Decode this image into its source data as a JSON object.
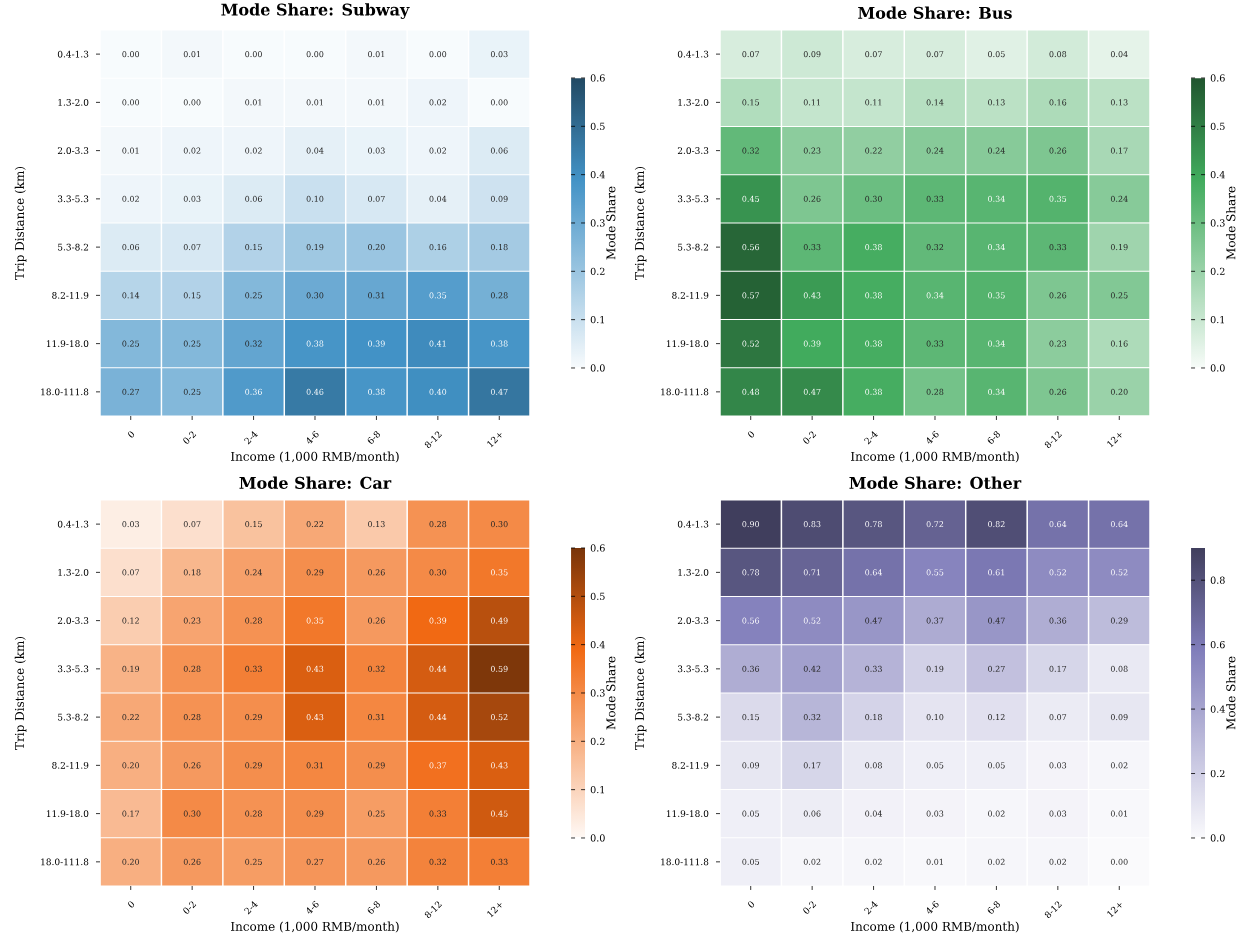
{
  "chart_data": [
    {
      "type": "heatmap",
      "title": "Mode Share: Subway",
      "xlabel": "Income (1,000 RMB/month)",
      "ylabel": "Trip Distance (km)",
      "clabel": "Mode Share",
      "color": "#4292c6",
      "categories": [
        "0",
        "0-2",
        "2-4",
        "4-6",
        "6-8",
        "8-12",
        "12+"
      ],
      "y_categories": [
        "0.4-1.3",
        "1.3-2.0",
        "2.0-3.3",
        "3.3-5.3",
        "5.3-8.2",
        "8.2-11.9",
        "11.9-18.0",
        "18.0-111.8"
      ],
      "cells": [
        [
          0.0,
          0.01,
          0.0,
          0.0,
          0.01,
          0.0,
          0.03
        ],
        [
          0.0,
          0.0,
          0.01,
          0.01,
          0.01,
          0.02,
          0.0
        ],
        [
          0.01,
          0.02,
          0.02,
          0.04,
          0.03,
          0.02,
          0.06
        ],
        [
          0.02,
          0.03,
          0.06,
          0.1,
          0.07,
          0.04,
          0.09
        ],
        [
          0.06,
          0.07,
          0.15,
          0.19,
          0.2,
          0.16,
          0.18
        ],
        [
          0.14,
          0.15,
          0.25,
          0.3,
          0.31,
          0.35,
          0.28
        ],
        [
          0.25,
          0.25,
          0.32,
          0.38,
          0.39,
          0.41,
          0.38
        ],
        [
          0.27,
          0.25,
          0.36,
          0.46,
          0.38,
          0.4,
          0.47
        ]
      ],
      "cell_labels": [
        [
          "0.00",
          "0.01",
          "0.00",
          "0.00",
          "0.01",
          "0.00",
          "0.03"
        ],
        [
          "0.00",
          "0.00",
          "0.01",
          "0.01",
          "0.01",
          "0.02",
          "0.00"
        ],
        [
          "0.01",
          "0.02",
          "0.02",
          "0.04",
          "0.03",
          "0.02",
          "0.06"
        ],
        [
          "0.02",
          "0.03",
          "0.06",
          "0.10",
          "0.07",
          "0.04",
          "0.09"
        ],
        [
          "0.06",
          "0.07",
          "0.15",
          "0.19",
          "0.20",
          "0.16",
          "0.18"
        ],
        [
          "0.14",
          "0.15",
          "0.25",
          "0.30",
          "0.31",
          "0.35",
          "0.28"
        ],
        [
          "0.25",
          "0.25",
          "0.32",
          "0.38",
          "0.39",
          "0.41",
          "0.38"
        ],
        [
          "0.27",
          "0.25",
          "0.36",
          "0.46",
          "0.38",
          "0.40",
          "0.47"
        ]
      ],
      "clim": [
        0,
        0.6
      ],
      "cticks": [
        {
          "value": 0,
          "label": "0.0"
        },
        {
          "value": 0.1,
          "label": "0.1"
        },
        {
          "value": 0.2,
          "label": "0.2"
        },
        {
          "value": 0.3,
          "label": "0.3"
        },
        {
          "value": 0.4,
          "label": "0.4"
        },
        {
          "value": 0.5,
          "label": "0.5"
        },
        {
          "value": 0.6,
          "label": "0.6"
        }
      ]
    },
    {
      "type": "heatmap",
      "title": "Mode Share: Bus",
      "xlabel": "Income (1,000 RMB/month)",
      "ylabel": "Trip Distance (km)",
      "clabel": "Mode Share",
      "color": "#41ab5d",
      "categories": [
        "0",
        "0-2",
        "2-4",
        "4-6",
        "6-8",
        "8-12",
        "12+"
      ],
      "y_categories": [
        "0.4-1.3",
        "1.3-2.0",
        "2.0-3.3",
        "3.3-5.3",
        "5.3-8.2",
        "8.2-11.9",
        "11.9-18.0",
        "18.0-111.8"
      ],
      "cells": [
        [
          0.07,
          0.09,
          0.07,
          0.07,
          0.05,
          0.08,
          0.04
        ],
        [
          0.15,
          0.11,
          0.11,
          0.14,
          0.13,
          0.16,
          0.13
        ],
        [
          0.32,
          0.23,
          0.22,
          0.24,
          0.24,
          0.26,
          0.17
        ],
        [
          0.45,
          0.26,
          0.3,
          0.33,
          0.34,
          0.35,
          0.24
        ],
        [
          0.56,
          0.33,
          0.38,
          0.32,
          0.34,
          0.33,
          0.19
        ],
        [
          0.57,
          0.43,
          0.38,
          0.34,
          0.35,
          0.26,
          0.25
        ],
        [
          0.52,
          0.39,
          0.38,
          0.33,
          0.34,
          0.23,
          0.16
        ],
        [
          0.48,
          0.47,
          0.38,
          0.28,
          0.34,
          0.26,
          0.2
        ]
      ],
      "cell_labels": [
        [
          "0.07",
          "0.09",
          "0.07",
          "0.07",
          "0.05",
          "0.08",
          "0.04"
        ],
        [
          "0.15",
          "0.11",
          "0.11",
          "0.14",
          "0.13",
          "0.16",
          "0.13"
        ],
        [
          "0.32",
          "0.23",
          "0.22",
          "0.24",
          "0.24",
          "0.26",
          "0.17"
        ],
        [
          "0.45",
          "0.26",
          "0.30",
          "0.33",
          "0.34",
          "0.35",
          "0.24"
        ],
        [
          "0.56",
          "0.33",
          "0.38",
          "0.32",
          "0.34",
          "0.33",
          "0.19"
        ],
        [
          "0.57",
          "0.43",
          "0.38",
          "0.34",
          "0.35",
          "0.26",
          "0.25"
        ],
        [
          "0.52",
          "0.39",
          "0.38",
          "0.33",
          "0.34",
          "0.23",
          "0.16"
        ],
        [
          "0.48",
          "0.47",
          "0.38",
          "0.28",
          "0.34",
          "0.26",
          "0.20"
        ]
      ],
      "clim": [
        0,
        0.6
      ],
      "cticks": [
        {
          "value": 0,
          "label": "0.0"
        },
        {
          "value": 0.1,
          "label": "0.1"
        },
        {
          "value": 0.2,
          "label": "0.2"
        },
        {
          "value": 0.3,
          "label": "0.3"
        },
        {
          "value": 0.4,
          "label": "0.4"
        },
        {
          "value": 0.5,
          "label": "0.5"
        },
        {
          "value": 0.6,
          "label": "0.6"
        }
      ]
    },
    {
      "type": "heatmap",
      "title": "Mode Share: Car",
      "xlabel": "Income (1,000 RMB/month)",
      "ylabel": "Trip Distance (km)",
      "clabel": "Mode Share",
      "color": "#f16913",
      "categories": [
        "0",
        "0-2",
        "2-4",
        "4-6",
        "6-8",
        "8-12",
        "12+"
      ],
      "y_categories": [
        "0.4-1.3",
        "1.3-2.0",
        "2.0-3.3",
        "3.3-5.3",
        "5.3-8.2",
        "8.2-11.9",
        "11.9-18.0",
        "18.0-111.8"
      ],
      "cells": [
        [
          0.03,
          0.07,
          0.15,
          0.22,
          0.13,
          0.28,
          0.3
        ],
        [
          0.07,
          0.18,
          0.24,
          0.29,
          0.26,
          0.3,
          0.35
        ],
        [
          0.12,
          0.23,
          0.28,
          0.35,
          0.26,
          0.39,
          0.49
        ],
        [
          0.19,
          0.28,
          0.33,
          0.43,
          0.32,
          0.44,
          0.59
        ],
        [
          0.22,
          0.28,
          0.29,
          0.43,
          0.31,
          0.44,
          0.52
        ],
        [
          0.2,
          0.26,
          0.29,
          0.31,
          0.29,
          0.37,
          0.43
        ],
        [
          0.17,
          0.3,
          0.28,
          0.29,
          0.25,
          0.33,
          0.45
        ],
        [
          0.2,
          0.26,
          0.25,
          0.27,
          0.26,
          0.32,
          0.33
        ]
      ],
      "cell_labels": [
        [
          "0.03",
          "0.07",
          "0.15",
          "0.22",
          "0.13",
          "0.28",
          "0.30"
        ],
        [
          "0.07",
          "0.18",
          "0.24",
          "0.29",
          "0.26",
          "0.30",
          "0.35"
        ],
        [
          "0.12",
          "0.23",
          "0.28",
          "0.35",
          "0.26",
          "0.39",
          "0.49"
        ],
        [
          "0.19",
          "0.28",
          "0.33",
          "0.43",
          "0.32",
          "0.44",
          "0.59"
        ],
        [
          "0.22",
          "0.28",
          "0.29",
          "0.43",
          "0.31",
          "0.44",
          "0.52"
        ],
        [
          "0.20",
          "0.26",
          "0.29",
          "0.31",
          "0.29",
          "0.37",
          "0.43"
        ],
        [
          "0.17",
          "0.30",
          "0.28",
          "0.29",
          "0.25",
          "0.33",
          "0.45"
        ],
        [
          "0.20",
          "0.26",
          "0.25",
          "0.27",
          "0.26",
          "0.32",
          "0.33"
        ]
      ],
      "clim": [
        0,
        0.6
      ],
      "cticks": [
        {
          "value": 0,
          "label": "0.0"
        },
        {
          "value": 0.1,
          "label": "0.1"
        },
        {
          "value": 0.2,
          "label": "0.2"
        },
        {
          "value": 0.3,
          "label": "0.3"
        },
        {
          "value": 0.4,
          "label": "0.4"
        },
        {
          "value": 0.5,
          "label": "0.5"
        },
        {
          "value": 0.6,
          "label": "0.6"
        }
      ]
    },
    {
      "type": "heatmap",
      "title": "Mode Share: Other",
      "xlabel": "Income (1,000 RMB/month)",
      "ylabel": "Trip Distance (km)",
      "clabel": "Mode Share",
      "color": "#807dba",
      "categories": [
        "0",
        "0-2",
        "2-4",
        "4-6",
        "6-8",
        "8-12",
        "12+"
      ],
      "y_categories": [
        "0.4-1.3",
        "1.3-2.0",
        "2.0-3.3",
        "3.3-5.3",
        "5.3-8.2",
        "8.2-11.9",
        "11.9-18.0",
        "18.0-111.8"
      ],
      "cells": [
        [
          0.9,
          0.83,
          0.78,
          0.72,
          0.82,
          0.64,
          0.64
        ],
        [
          0.78,
          0.71,
          0.64,
          0.55,
          0.61,
          0.52,
          0.52
        ],
        [
          0.56,
          0.52,
          0.47,
          0.37,
          0.47,
          0.36,
          0.29
        ],
        [
          0.36,
          0.42,
          0.33,
          0.19,
          0.27,
          0.17,
          0.08
        ],
        [
          0.15,
          0.32,
          0.18,
          0.1,
          0.12,
          0.07,
          0.09
        ],
        [
          0.09,
          0.17,
          0.08,
          0.05,
          0.05,
          0.03,
          0.02
        ],
        [
          0.05,
          0.06,
          0.04,
          0.03,
          0.02,
          0.03,
          0.01
        ],
        [
          0.05,
          0.02,
          0.02,
          0.01,
          0.02,
          0.02,
          0.0
        ]
      ],
      "cell_labels": [
        [
          "0.90",
          "0.83",
          "0.78",
          "0.72",
          "0.82",
          "0.64",
          "0.64"
        ],
        [
          "0.78",
          "0.71",
          "0.64",
          "0.55",
          "0.61",
          "0.52",
          "0.52"
        ],
        [
          "0.56",
          "0.52",
          "0.47",
          "0.37",
          "0.47",
          "0.36",
          "0.29"
        ],
        [
          "0.36",
          "0.42",
          "0.33",
          "0.19",
          "0.27",
          "0.17",
          "0.08"
        ],
        [
          "0.15",
          "0.32",
          "0.18",
          "0.10",
          "0.12",
          "0.07",
          "0.09"
        ],
        [
          "0.09",
          "0.17",
          "0.08",
          "0.05",
          "0.05",
          "0.03",
          "0.02"
        ],
        [
          "0.05",
          "0.06",
          "0.04",
          "0.03",
          "0.02",
          "0.03",
          "0.01"
        ],
        [
          "0.05",
          "0.02",
          "0.02",
          "0.01",
          "0.02",
          "0.02",
          "0.00"
        ]
      ],
      "clim": [
        0,
        0.9
      ],
      "cticks": [
        {
          "value": 0,
          "label": "0.0"
        },
        {
          "value": 0.2,
          "label": "0.2"
        },
        {
          "value": 0.4,
          "label": "0.4"
        },
        {
          "value": 0.6,
          "label": "0.6"
        },
        {
          "value": 0.8,
          "label": "0.8"
        }
      ]
    }
  ]
}
